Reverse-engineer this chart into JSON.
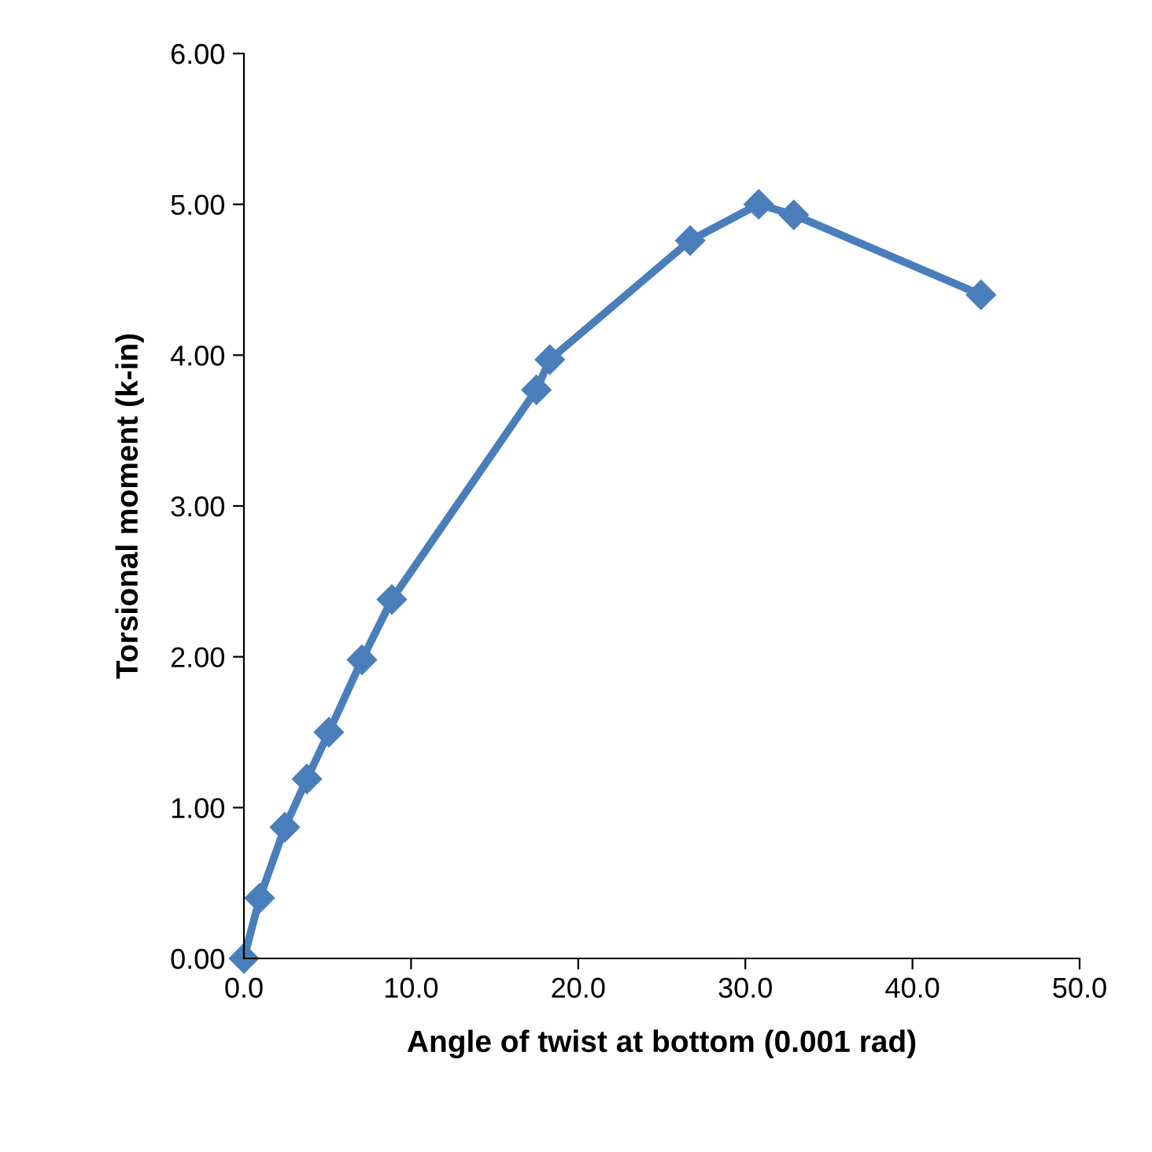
{
  "chart_data": {
    "type": "line",
    "xlabel": "Angle of twist at bottom (0.001 rad)",
    "ylabel": "Torsional moment (k-in)",
    "series": [
      {
        "color": "#4a7ebb",
        "x": [
          0,
          0.94,
          2.45,
          3.77,
          5.08,
          7.06,
          8.85,
          17.5,
          18.3,
          26.7,
          30.8,
          32.9,
          44.1
        ],
        "values": [
          0,
          0.4,
          0.87,
          1.19,
          1.5,
          1.98,
          2.38,
          3.77,
          3.97,
          4.76,
          5.0,
          4.93,
          4.4
        ]
      }
    ],
    "xlim": [
      0,
      50
    ],
    "xticks": [
      {
        "value": 0,
        "label": "0.0"
      },
      {
        "value": 10,
        "label": "10.0"
      },
      {
        "value": 20,
        "label": "20.0"
      },
      {
        "value": 30,
        "label": "30.0"
      },
      {
        "value": 40,
        "label": "40.0"
      },
      {
        "value": 50,
        "label": "50.0"
      }
    ],
    "ylim": [
      0,
      6
    ],
    "yticks": [
      {
        "value": 0,
        "label": "0.00"
      },
      {
        "value": 1,
        "label": "1.00"
      },
      {
        "value": 2,
        "label": "2.00"
      },
      {
        "value": 3,
        "label": "3.00"
      },
      {
        "value": 4,
        "label": "4.00"
      },
      {
        "value": 5,
        "label": "5.00"
      },
      {
        "value": 6,
        "label": "6.00"
      }
    ],
    "grid": false,
    "legend": false,
    "marker": "diamond",
    "line_style": "solid"
  }
}
